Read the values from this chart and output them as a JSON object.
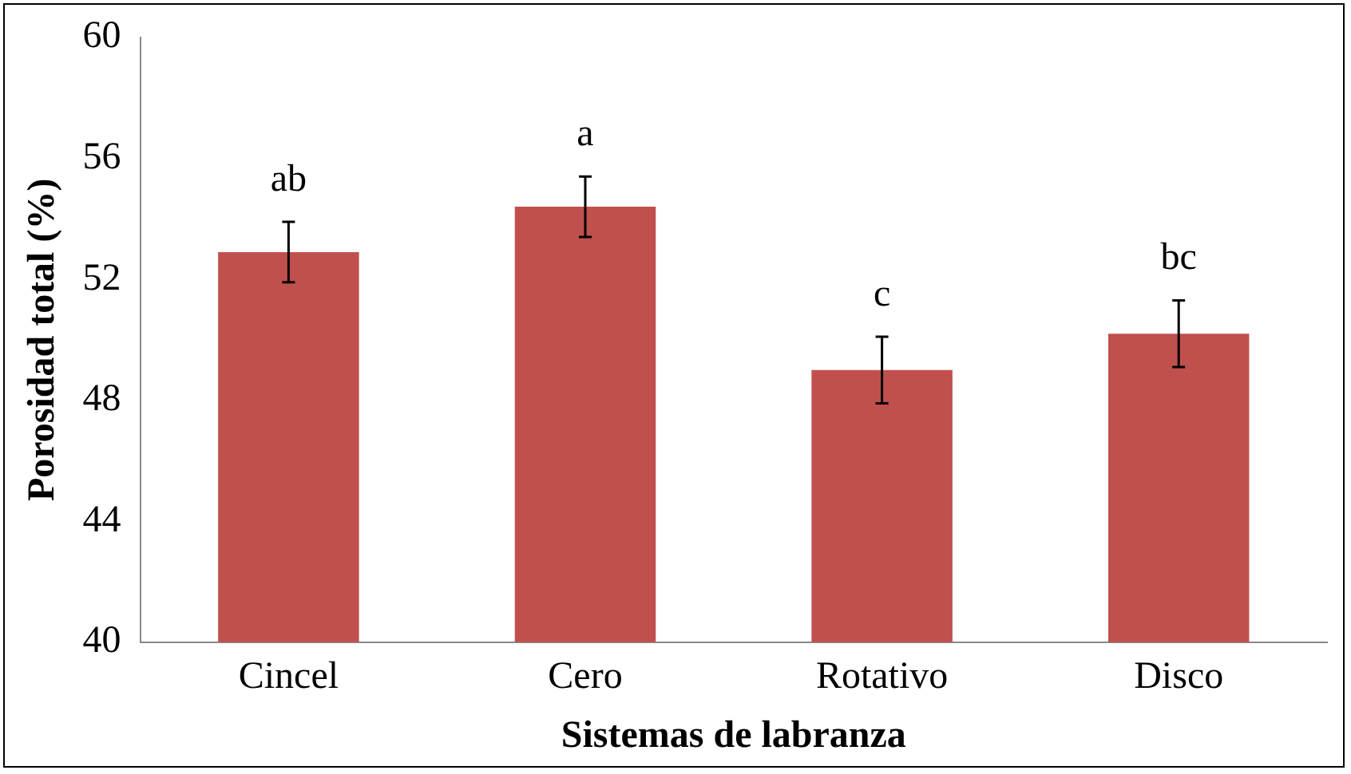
{
  "chart_data": {
    "type": "bar",
    "xlabel": "Sistemas de labranza",
    "ylabel": "Porosidad total (%)",
    "categories": [
      "Cincel",
      "Cero",
      "Rotativo",
      "Disco"
    ],
    "values": [
      52.9,
      54.4,
      49.0,
      50.2
    ],
    "color": "#c0504d",
    "errors": [
      1.0,
      1.0,
      1.1,
      1.1
    ],
    "ylim": [
      40,
      60
    ],
    "yticks": [
      40,
      44,
      48,
      52,
      56,
      60
    ],
    "grid": false,
    "legend": false,
    "annotations": [
      "ab",
      "a",
      "c",
      "bc"
    ]
  }
}
